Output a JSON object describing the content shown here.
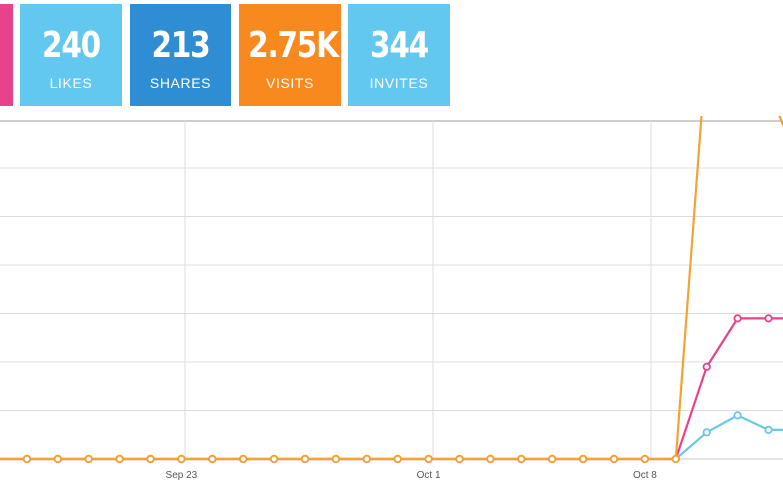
{
  "colors": {
    "first_tile": "#e8428a",
    "likes": "#63c8ef",
    "shares": "#2f8ed3",
    "visits": "#f7891f",
    "invites": "#63c8ef",
    "grid": "#dcdcdc"
  },
  "stats": [
    {
      "value": "240",
      "label": "LIKES"
    },
    {
      "value": "213",
      "label": "SHARES"
    },
    {
      "value": "2.75K",
      "label": "VISITS"
    },
    {
      "value": "344",
      "label": "INVITES"
    }
  ],
  "chart_data": {
    "type": "line",
    "x_tick_labels": [
      "Sep 23",
      "Oct 1",
      "Oct 8"
    ],
    "grid": true,
    "visible_points": 26,
    "series": [
      {
        "color": "#f5a233",
        "values": [
          0,
          0,
          0,
          0,
          0,
          0,
          0,
          0,
          0,
          0,
          0,
          0,
          0,
          0,
          0,
          0,
          0,
          0,
          0,
          0,
          0,
          0,
          0,
          8.5,
          9.6,
          7.6,
          6.1
        ]
      },
      {
        "color": "#e8428a",
        "values": [
          0,
          0,
          0,
          0,
          0,
          0,
          0,
          0,
          0,
          0,
          0,
          0,
          0,
          0,
          0,
          0,
          0,
          0,
          0,
          0,
          0,
          0,
          0,
          1.9,
          2.9,
          2.9,
          2.9
        ]
      },
      {
        "color": "#6cc6e8",
        "values": [
          0,
          0,
          0,
          0,
          0,
          0,
          0,
          0,
          0,
          0,
          0,
          0,
          0,
          0,
          0,
          0,
          0,
          0,
          0,
          0,
          0,
          0,
          0,
          0.55,
          0.9,
          0.6,
          0.6
        ]
      }
    ]
  }
}
